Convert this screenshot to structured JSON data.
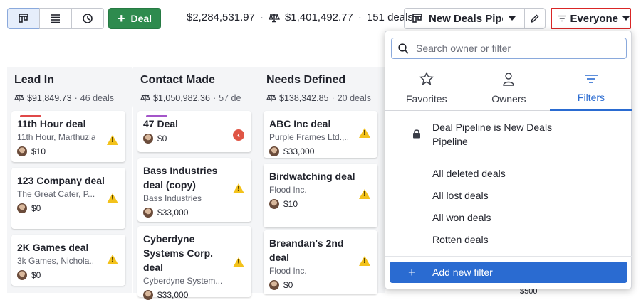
{
  "toolbar": {
    "deal_label": "Deal",
    "total_value": "$2,284,531.97",
    "weighted_value": "$1,401,492.77",
    "deal_count": "151 deals",
    "pipeline_label": "New Deals Pipeline",
    "owner_filter_label": "Everyone"
  },
  "columns": [
    {
      "name": "Lead In",
      "sum": "$91,849.73",
      "count": "46 deals",
      "cards": [
        {
          "title": "11th Hour deal",
          "subtitle": "11th Hour, Marthuzia",
          "value": "$10",
          "bar_color": "#e04848",
          "status": "warning"
        },
        {
          "title": "123 Company deal",
          "subtitle": "The Great Cater, P...",
          "value": "$0",
          "status": "warning"
        },
        {
          "title": "2K Games deal",
          "subtitle": "3k Games, Nichola...",
          "value": "$0",
          "status": "warning"
        }
      ]
    },
    {
      "name": "Contact Made",
      "sum": "$1,050,982.36",
      "count": "57 de",
      "cards": [
        {
          "title": "47 Deal",
          "subtitle": "",
          "value": "$0",
          "bar_color": "#a455c9",
          "status": "overdue"
        },
        {
          "title": "Bass Industries deal (copy)",
          "subtitle": "Bass Industries",
          "value": "$33,000",
          "status": "warning"
        },
        {
          "title": "Cyberdyne Systems Corp. deal",
          "subtitle": "Cyberdyne System...",
          "value": "$33,000",
          "status": "warning"
        }
      ]
    },
    {
      "name": "Needs Defined",
      "sum": "$138,342.85",
      "count": "20 deals",
      "cards": [
        {
          "title": "ABC Inc deal",
          "subtitle": "Purple Frames Ltd.,...",
          "value": "$33,000",
          "status": "warning"
        },
        {
          "title": "Birdwatching deal",
          "subtitle": "Flood Inc.",
          "value": "$10",
          "status": "warning"
        },
        {
          "title": "Breandan's 2nd deal",
          "subtitle": "Flood Inc.",
          "value": "$0",
          "status": "warning"
        }
      ]
    }
  ],
  "dropdown": {
    "search_placeholder": "Search owner or filter",
    "tabs": [
      {
        "label": "Favorites",
        "icon": "star-icon"
      },
      {
        "label": "Owners",
        "icon": "person-icon"
      },
      {
        "label": "Filters",
        "icon": "filter-icon"
      }
    ],
    "locked_filter": "Deal Pipeline is New Deals Pipeline",
    "items": [
      "All deleted deals",
      "All lost deals",
      "All won deals",
      "Rotten deals"
    ],
    "add_label": "Add new filter"
  },
  "peek_value": "$500",
  "colors": {
    "accent": "#2a6bd1",
    "deal_green": "#2e8b4e",
    "highlight_red": "#d92626",
    "warning": "#f3c21b"
  }
}
